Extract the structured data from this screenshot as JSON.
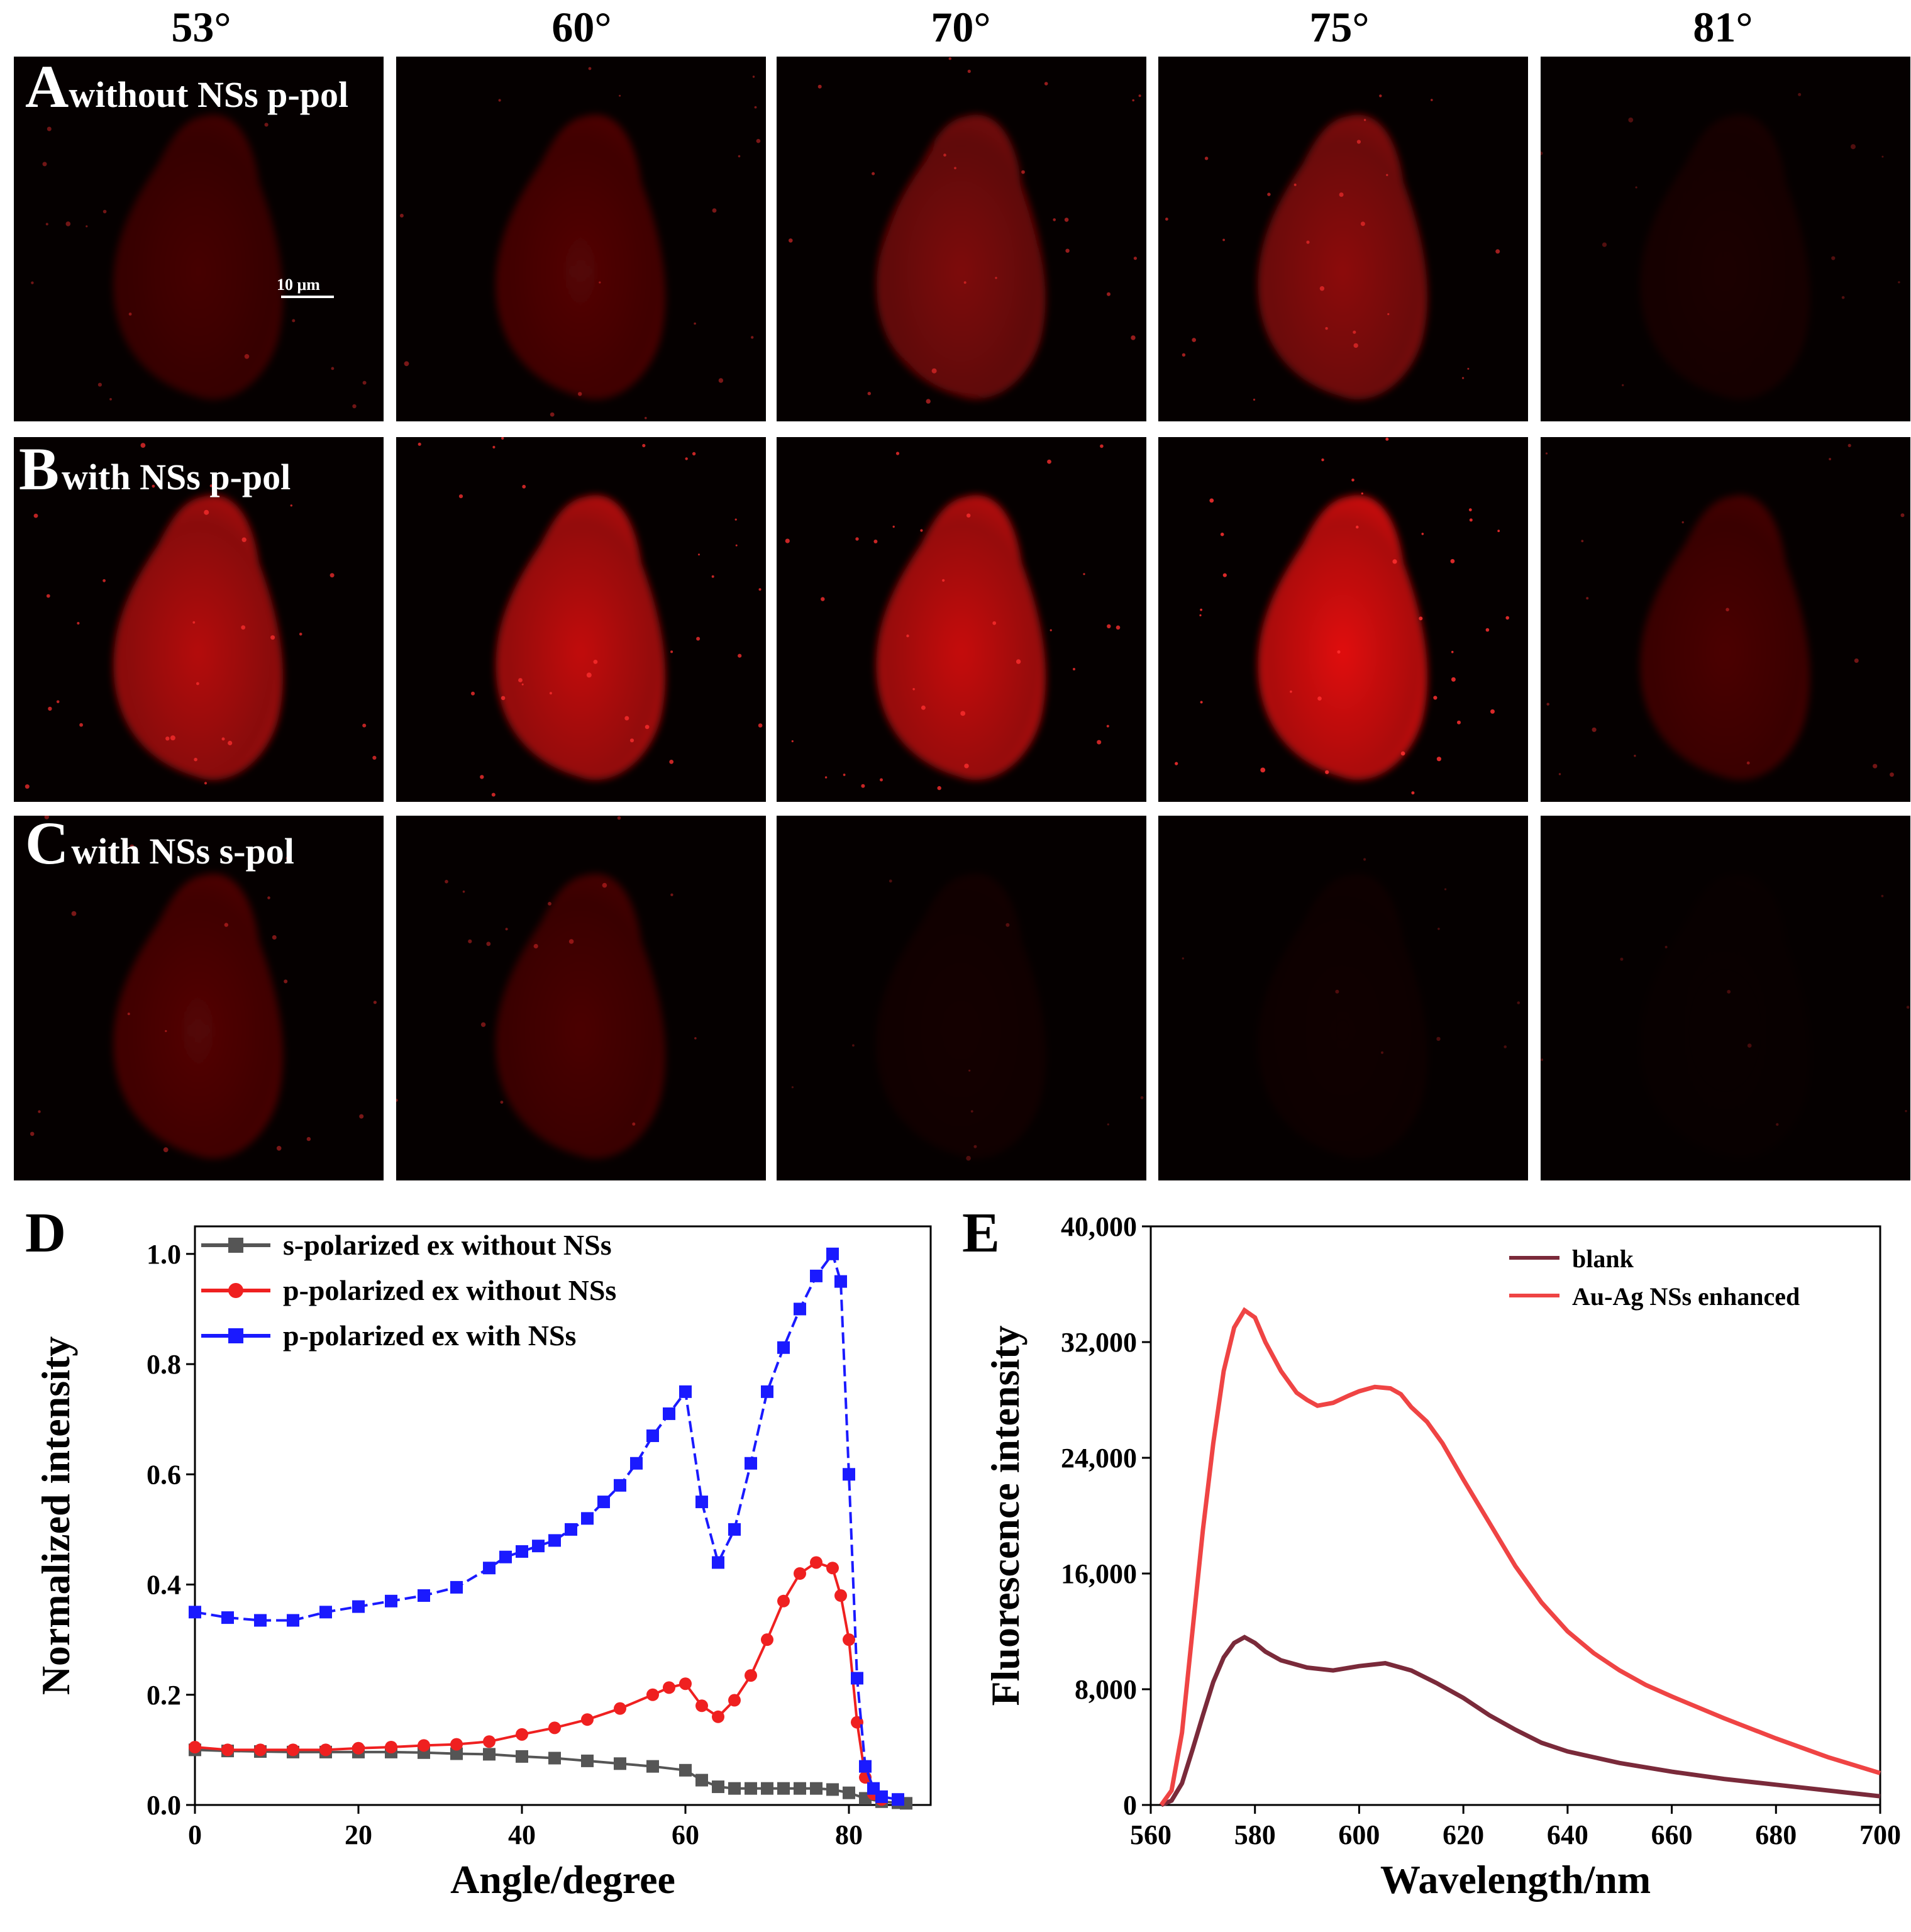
{
  "angles": [
    "53°",
    "60°",
    "70°",
    "75°",
    "81°"
  ],
  "rows": [
    {
      "letter": "A",
      "label": "without NSs p-pol",
      "intensities": [
        0.3,
        0.36,
        0.55,
        0.62,
        0.1
      ]
    },
    {
      "letter": "B",
      "label": "with NSs p-pol",
      "intensities": [
        0.8,
        0.86,
        0.88,
        1.0,
        0.32
      ]
    },
    {
      "letter": "C",
      "label": "with NSs s-pol",
      "intensities": [
        0.36,
        0.32,
        0.07,
        0.05,
        0.02
      ]
    }
  ],
  "scale_bar": "10 μm",
  "colors": {
    "fluorescence": "#e01010",
    "blank": "#7a2a3a",
    "enhanced": "#ef4444",
    "s_series": "#555555",
    "p_series": "#ef2020",
    "p_ns_series": "#1a1aff"
  },
  "chart_data": [
    {
      "type": "line",
      "panel_letter": "D",
      "xlabel": "Angle/degree",
      "ylabel": "Normalized intensity",
      "xlim": [
        0,
        90
      ],
      "ylim": [
        0,
        1.05
      ],
      "xticks": [
        0,
        20,
        40,
        60,
        80
      ],
      "yticks": [
        0.0,
        0.2,
        0.4,
        0.6,
        0.8,
        1.0
      ],
      "ytick_labels": [
        "0.0",
        "0.2",
        "0.4",
        "0.6",
        "0.8",
        "1.0"
      ],
      "legend_position": "top-left",
      "series": [
        {
          "name": "s-polarized ex without NSs",
          "color": "#555555",
          "marker": "square",
          "x": [
            0,
            4,
            8,
            12,
            16,
            20,
            24,
            28,
            32,
            36,
            40,
            44,
            48,
            52,
            56,
            60,
            62,
            64,
            66,
            68,
            70,
            72,
            74,
            76,
            78,
            80,
            82,
            84,
            86,
            87
          ],
          "y": [
            0.1,
            0.098,
            0.097,
            0.096,
            0.096,
            0.096,
            0.096,
            0.095,
            0.093,
            0.092,
            0.088,
            0.085,
            0.08,
            0.075,
            0.07,
            0.063,
            0.045,
            0.033,
            0.03,
            0.03,
            0.03,
            0.03,
            0.03,
            0.03,
            0.028,
            0.022,
            0.012,
            0.006,
            0.004,
            0.003
          ]
        },
        {
          "name": "p-polarized ex without NSs",
          "color": "#ef2020",
          "marker": "circle",
          "x": [
            0,
            4,
            8,
            12,
            16,
            20,
            24,
            28,
            32,
            36,
            40,
            44,
            48,
            52,
            56,
            58,
            60,
            62,
            64,
            66,
            68,
            70,
            72,
            74,
            76,
            78,
            79,
            80,
            81,
            82,
            83,
            84
          ],
          "y": [
            0.105,
            0.1,
            0.1,
            0.1,
            0.1,
            0.103,
            0.105,
            0.108,
            0.11,
            0.115,
            0.128,
            0.14,
            0.155,
            0.175,
            0.2,
            0.213,
            0.22,
            0.18,
            0.16,
            0.19,
            0.235,
            0.3,
            0.37,
            0.42,
            0.44,
            0.43,
            0.38,
            0.3,
            0.15,
            0.05,
            0.02,
            0.01
          ]
        },
        {
          "name": "p-polarized ex with NSs",
          "color": "#1a1aff",
          "marker": "square",
          "x": [
            0,
            4,
            8,
            12,
            16,
            20,
            24,
            28,
            32,
            36,
            38,
            40,
            42,
            44,
            46,
            48,
            50,
            52,
            54,
            56,
            58,
            60,
            62,
            64,
            66,
            68,
            70,
            72,
            74,
            76,
            78,
            79,
            80,
            81,
            82,
            83,
            84,
            86
          ],
          "y": [
            0.35,
            0.34,
            0.335,
            0.335,
            0.35,
            0.36,
            0.37,
            0.38,
            0.395,
            0.43,
            0.45,
            0.46,
            0.47,
            0.48,
            0.5,
            0.52,
            0.55,
            0.58,
            0.62,
            0.67,
            0.71,
            0.75,
            0.55,
            0.44,
            0.5,
            0.62,
            0.75,
            0.83,
            0.9,
            0.96,
            1.0,
            0.95,
            0.6,
            0.23,
            0.07,
            0.03,
            0.015,
            0.01
          ]
        }
      ]
    },
    {
      "type": "line",
      "panel_letter": "E",
      "xlabel": "Wavelength/nm",
      "ylabel": "Fluorescence intensity",
      "xlim": [
        560,
        700
      ],
      "ylim": [
        0,
        40000
      ],
      "xticks": [
        560,
        580,
        600,
        620,
        640,
        660,
        680,
        700
      ],
      "yticks": [
        0,
        8000,
        16000,
        24000,
        32000,
        40000
      ],
      "ytick_labels": [
        "0",
        "8,000",
        "16,000",
        "24,000",
        "32,000",
        "40,000"
      ],
      "legend_position": "top-right",
      "series": [
        {
          "name": "blank",
          "color": "#7a2a3a",
          "x": [
            562,
            564,
            566,
            568,
            570,
            572,
            574,
            576,
            578,
            580,
            582,
            585,
            590,
            595,
            600,
            605,
            610,
            615,
            620,
            625,
            630,
            635,
            640,
            650,
            660,
            670,
            680,
            690,
            700
          ],
          "y": [
            0,
            300,
            1500,
            3800,
            6200,
            8500,
            10200,
            11200,
            11600,
            11200,
            10600,
            10000,
            9500,
            9300,
            9600,
            9800,
            9300,
            8400,
            7400,
            6200,
            5200,
            4300,
            3700,
            2900,
            2300,
            1800,
            1400,
            1000,
            600
          ]
        },
        {
          "name": "Au-Ag NSs enhanced",
          "color": "#ef4444",
          "x": [
            562,
            564,
            566,
            568,
            570,
            572,
            574,
            576,
            578,
            580,
            582,
            585,
            588,
            590,
            592,
            595,
            598,
            600,
            603,
            606,
            608,
            610,
            613,
            616,
            620,
            625,
            630,
            635,
            640,
            645,
            650,
            655,
            660,
            670,
            680,
            690,
            700
          ],
          "y": [
            0,
            1000,
            5000,
            12000,
            19000,
            25000,
            30000,
            33000,
            34200,
            33700,
            32000,
            30000,
            28500,
            28000,
            27600,
            27800,
            28300,
            28600,
            28900,
            28800,
            28400,
            27500,
            26500,
            25000,
            22500,
            19500,
            16500,
            14000,
            12000,
            10500,
            9300,
            8300,
            7500,
            6000,
            4600,
            3300,
            2200
          ]
        }
      ]
    }
  ]
}
